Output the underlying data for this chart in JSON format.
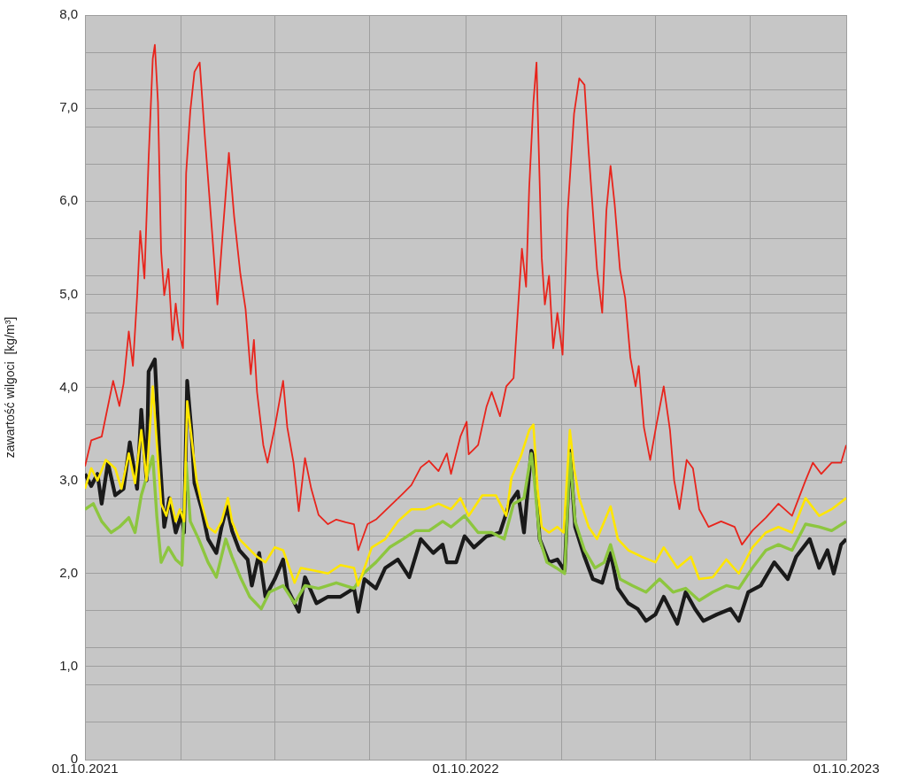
{
  "chart_data": {
    "type": "line",
    "ylabel": "zawartość wilgoci  [kg/m³]",
    "xlim": [
      "2021-10-01",
      "2023-10-01"
    ],
    "xticks": [
      {
        "value": "2021-10-01",
        "label": "01.10.2021"
      },
      {
        "value": "2022-01-01",
        "label": null
      },
      {
        "value": "2022-04-01",
        "label": null
      },
      {
        "value": "2022-07-01",
        "label": null
      },
      {
        "value": "2022-10-01",
        "label": "01.10.2022"
      },
      {
        "value": "2023-01-01",
        "label": null
      },
      {
        "value": "2023-04-01",
        "label": null
      },
      {
        "value": "2023-07-01",
        "label": null
      },
      {
        "value": "2023-10-01",
        "label": "01.10.2023"
      }
    ],
    "ylim": [
      0,
      8
    ],
    "yticks": [
      0,
      {
        "value": 0.4,
        "label": null
      },
      {
        "value": 0.8,
        "label": null
      },
      {
        "value": 1,
        "label": "1,0"
      },
      {
        "value": 1.2,
        "label": null
      },
      {
        "value": 1.6,
        "label": null
      },
      {
        "value": 2,
        "label": "2,0"
      },
      {
        "value": 2.4,
        "label": null
      },
      {
        "value": 2.8,
        "label": null
      },
      {
        "value": 3,
        "label": "3,0"
      },
      {
        "value": 3.2,
        "label": null
      },
      {
        "value": 3.6,
        "label": null
      },
      {
        "value": 4,
        "label": "4,0"
      },
      {
        "value": 4.4,
        "label": null
      },
      {
        "value": 4.8,
        "label": null
      },
      {
        "value": 5,
        "label": "5,0"
      },
      {
        "value": 5.2,
        "label": null
      },
      {
        "value": 5.6,
        "label": null
      },
      {
        "value": 6,
        "label": "6,0"
      },
      {
        "value": 6.4,
        "label": null
      },
      {
        "value": 6.8,
        "label": null
      },
      {
        "value": 7,
        "label": "7,0"
      },
      {
        "value": 7.2,
        "label": null
      },
      {
        "value": 7.6,
        "label": null
      },
      {
        "value": 8,
        "label": "8,0"
      }
    ],
    "grid": true,
    "legend": false,
    "marker": "none",
    "series": [
      {
        "color": "#e8241c",
        "x": [
          "2021-10-01",
          "2021-10-07",
          "2021-10-17",
          "2021-10-28",
          "2021-11-03",
          "2021-11-07",
          "2021-11-12",
          "2021-11-16",
          "2021-11-20",
          "2021-11-23",
          "2021-11-27",
          "2021-12-01",
          "2021-12-05",
          "2021-12-07",
          "2021-12-10",
          "2021-12-13",
          "2021-12-16",
          "2021-12-20",
          "2021-12-24",
          "2021-12-27",
          "2021-12-30",
          "2022-01-03",
          "2022-01-06",
          "2022-01-10",
          "2022-01-14",
          "2022-01-19",
          "2022-01-24",
          "2022-01-31",
          "2022-02-05",
          "2022-02-10",
          "2022-02-16",
          "2022-02-21",
          "2022-02-27",
          "2022-03-04",
          "2022-03-09",
          "2022-03-12",
          "2022-03-15",
          "2022-03-21",
          "2022-03-25",
          "2022-04-01",
          "2022-04-09",
          "2022-04-13",
          "2022-04-19",
          "2022-04-24",
          "2022-04-30",
          "2022-05-06",
          "2022-05-13",
          "2022-05-22",
          "2022-05-30",
          "2022-06-08",
          "2022-06-16",
          "2022-06-20",
          "2022-06-29",
          "2022-07-07",
          "2022-07-20",
          "2022-08-02",
          "2022-08-10",
          "2022-08-19",
          "2022-08-27",
          "2022-09-05",
          "2022-09-13",
          "2022-09-17",
          "2022-09-26",
          "2022-10-02",
          "2022-10-04",
          "2022-10-13",
          "2022-10-21",
          "2022-10-26",
          "2022-11-03",
          "2022-11-09",
          "2022-11-16",
          "2022-11-20",
          "2022-11-24",
          "2022-11-28",
          "2022-12-01",
          "2022-12-05",
          "2022-12-08",
          "2022-12-10",
          "2022-12-13",
          "2022-12-16",
          "2022-12-20",
          "2022-12-24",
          "2022-12-28",
          "2023-01-02",
          "2023-01-07",
          "2023-01-13",
          "2023-01-18",
          "2023-01-23",
          "2023-01-27",
          "2023-01-31",
          "2023-02-04",
          "2023-02-09",
          "2023-02-13",
          "2023-02-17",
          "2023-02-21",
          "2023-02-26",
          "2023-03-03",
          "2023-03-08",
          "2023-03-13",
          "2023-03-16",
          "2023-03-21",
          "2023-03-27",
          "2023-04-02",
          "2023-04-09",
          "2023-04-15",
          "2023-04-19",
          "2023-04-24",
          "2023-05-01",
          "2023-05-07",
          "2023-05-13",
          "2023-05-22",
          "2023-06-03",
          "2023-06-16",
          "2023-06-23",
          "2023-07-03",
          "2023-07-16",
          "2023-07-28",
          "2023-08-10",
          "2023-08-23",
          "2023-08-30",
          "2023-09-07",
          "2023-09-17",
          "2023-09-26",
          "2023-10-01"
        ],
        "values": [
          3.15,
          3.43,
          3.47,
          4.07,
          3.8,
          4.04,
          4.6,
          4.23,
          4.98,
          5.68,
          5.17,
          6.45,
          7.53,
          7.68,
          7.06,
          5.46,
          4.99,
          5.27,
          4.51,
          4.9,
          4.6,
          4.42,
          6.3,
          6.97,
          7.39,
          7.49,
          6.69,
          5.65,
          4.89,
          5.65,
          6.52,
          5.84,
          5.22,
          4.84,
          4.14,
          4.51,
          3.95,
          3.38,
          3.19,
          3.57,
          4.07,
          3.57,
          3.19,
          2.67,
          3.24,
          2.91,
          2.63,
          2.53,
          2.58,
          2.55,
          2.53,
          2.25,
          2.53,
          2.58,
          2.72,
          2.86,
          2.95,
          3.14,
          3.21,
          3.1,
          3.29,
          3.07,
          3.47,
          3.63,
          3.28,
          3.38,
          3.79,
          3.95,
          3.69,
          4.01,
          4.1,
          4.8,
          5.49,
          5.08,
          6.15,
          7.06,
          7.49,
          6.62,
          5.39,
          4.89,
          5.2,
          4.42,
          4.8,
          4.35,
          5.9,
          6.94,
          7.32,
          7.25,
          6.53,
          5.9,
          5.27,
          4.8,
          5.9,
          6.38,
          5.96,
          5.27,
          4.96,
          4.32,
          4.01,
          4.23,
          3.57,
          3.22,
          3.6,
          4.01,
          3.54,
          3.0,
          2.69,
          3.22,
          3.13,
          2.69,
          2.5,
          2.56,
          2.5,
          2.31,
          2.46,
          2.6,
          2.75,
          2.62,
          3.0,
          3.19,
          3.07,
          3.19,
          3.19,
          3.38
        ]
      },
      {
        "color": "#ffe600",
        "x": [
          "2021-10-01",
          "2021-10-07",
          "2021-10-13",
          "2021-10-21",
          "2021-10-30",
          "2021-11-05",
          "2021-11-12",
          "2021-11-18",
          "2021-11-24",
          "2021-11-29",
          "2021-12-03",
          "2021-12-05",
          "2021-12-09",
          "2021-12-13",
          "2021-12-18",
          "2021-12-22",
          "2021-12-27",
          "2021-12-31",
          "2022-01-04",
          "2022-01-07",
          "2022-01-12",
          "2022-01-16",
          "2022-01-21",
          "2022-01-27",
          "2022-02-03",
          "2022-02-09",
          "2022-02-15",
          "2022-02-19",
          "2022-02-26",
          "2022-03-06",
          "2022-03-15",
          "2022-03-23",
          "2022-04-01",
          "2022-04-09",
          "2022-04-20",
          "2022-04-26",
          "2022-05-09",
          "2022-05-22",
          "2022-06-03",
          "2022-06-16",
          "2022-06-20",
          "2022-07-03",
          "2022-07-16",
          "2022-07-28",
          "2022-08-10",
          "2022-08-23",
          "2022-09-05",
          "2022-09-17",
          "2022-09-26",
          "2022-10-04",
          "2022-10-17",
          "2022-10-30",
          "2022-11-09",
          "2022-11-14",
          "2022-11-23",
          "2022-12-01",
          "2022-12-05",
          "2022-12-09",
          "2022-12-13",
          "2022-12-20",
          "2022-12-28",
          "2023-01-03",
          "2023-01-09",
          "2023-01-13",
          "2023-01-18",
          "2023-01-27",
          "2023-02-04",
          "2023-02-11",
          "2023-02-17",
          "2023-02-24",
          "2023-03-06",
          "2023-03-19",
          "2023-04-01",
          "2023-04-09",
          "2023-04-22",
          "2023-05-05",
          "2023-05-13",
          "2023-05-26",
          "2023-06-08",
          "2023-06-20",
          "2023-07-03",
          "2023-07-16",
          "2023-07-28",
          "2023-08-10",
          "2023-08-23",
          "2023-09-05",
          "2023-09-17",
          "2023-10-01"
        ],
        "values": [
          2.91,
          3.13,
          3.0,
          3.22,
          3.13,
          2.91,
          3.29,
          2.97,
          3.54,
          3.0,
          3.69,
          4.01,
          3.38,
          2.75,
          2.62,
          2.81,
          2.56,
          2.69,
          2.56,
          3.85,
          3.38,
          3.0,
          2.75,
          2.5,
          2.44,
          2.56,
          2.81,
          2.56,
          2.37,
          2.28,
          2.18,
          2.12,
          2.28,
          2.25,
          1.9,
          2.06,
          2.03,
          2.0,
          2.09,
          2.06,
          1.87,
          2.28,
          2.37,
          2.56,
          2.69,
          2.69,
          2.75,
          2.69,
          2.81,
          2.62,
          2.84,
          2.84,
          2.62,
          3.03,
          3.26,
          3.54,
          3.6,
          2.91,
          2.5,
          2.44,
          2.5,
          2.44,
          3.54,
          3.13,
          2.81,
          2.5,
          2.37,
          2.56,
          2.72,
          2.37,
          2.25,
          2.18,
          2.12,
          2.28,
          2.06,
          2.18,
          1.94,
          1.96,
          2.15,
          2.0,
          2.28,
          2.44,
          2.5,
          2.44,
          2.81,
          2.62,
          2.69,
          2.81
        ]
      },
      {
        "color": "#8dc63f",
        "x": [
          "2021-10-01",
          "2021-10-09",
          "2021-10-17",
          "2021-10-26",
          "2021-11-03",
          "2021-11-12",
          "2021-11-18",
          "2021-11-24",
          "2021-11-30",
          "2021-12-05",
          "2021-12-09",
          "2021-12-13",
          "2021-12-20",
          "2021-12-27",
          "2022-01-02",
          "2022-01-06",
          "2022-01-10",
          "2022-01-18",
          "2022-01-27",
          "2022-02-04",
          "2022-02-13",
          "2022-02-19",
          "2022-02-27",
          "2022-03-08",
          "2022-03-19",
          "2022-03-27",
          "2022-04-09",
          "2022-04-20",
          "2022-04-30",
          "2022-05-13",
          "2022-05-30",
          "2022-06-16",
          "2022-06-25",
          "2022-07-07",
          "2022-07-20",
          "2022-08-02",
          "2022-08-14",
          "2022-08-27",
          "2022-09-09",
          "2022-09-17",
          "2022-09-30",
          "2022-10-13",
          "2022-10-26",
          "2022-11-07",
          "2022-11-16",
          "2022-11-26",
          "2022-12-03",
          "2022-12-06",
          "2022-12-11",
          "2022-12-18",
          "2022-12-27",
          "2023-01-04",
          "2023-01-09",
          "2023-01-14",
          "2023-01-23",
          "2023-02-02",
          "2023-02-11",
          "2023-02-17",
          "2023-02-26",
          "2023-03-10",
          "2023-03-23",
          "2023-04-05",
          "2023-04-18",
          "2023-04-30",
          "2023-05-13",
          "2023-05-26",
          "2023-06-08",
          "2023-06-20",
          "2023-07-03",
          "2023-07-16",
          "2023-07-28",
          "2023-08-10",
          "2023-08-23",
          "2023-09-05",
          "2023-09-17",
          "2023-10-01"
        ],
        "values": [
          2.69,
          2.75,
          2.56,
          2.44,
          2.5,
          2.6,
          2.44,
          2.84,
          3.07,
          3.26,
          2.6,
          2.12,
          2.28,
          2.15,
          2.09,
          3.19,
          2.56,
          2.37,
          2.12,
          1.96,
          2.37,
          2.18,
          1.96,
          1.75,
          1.62,
          1.8,
          1.87,
          1.68,
          1.87,
          1.84,
          1.9,
          1.84,
          2.0,
          2.12,
          2.28,
          2.37,
          2.46,
          2.46,
          2.56,
          2.5,
          2.62,
          2.44,
          2.44,
          2.37,
          2.75,
          2.81,
          3.29,
          3.0,
          2.37,
          2.12,
          2.06,
          2.0,
          3.29,
          2.56,
          2.25,
          2.06,
          2.12,
          2.31,
          1.94,
          1.87,
          1.8,
          1.94,
          1.8,
          1.84,
          1.71,
          1.8,
          1.87,
          1.84,
          2.06,
          2.25,
          2.31,
          2.25,
          2.53,
          2.5,
          2.46,
          2.56
        ]
      },
      {
        "color": "#1a1a1a",
        "x": [
          "2021-10-01",
          "2021-10-07",
          "2021-10-13",
          "2021-10-17",
          "2021-10-23",
          "2021-10-30",
          "2021-11-07",
          "2021-11-13",
          "2021-11-20",
          "2021-11-24",
          "2021-11-29",
          "2021-12-01",
          "2021-12-07",
          "2021-12-11",
          "2021-12-16",
          "2021-12-21",
          "2021-12-27",
          "2022-01-02",
          "2022-01-04",
          "2022-01-07",
          "2022-01-11",
          "2022-01-14",
          "2022-01-21",
          "2022-01-27",
          "2022-02-04",
          "2022-02-09",
          "2022-02-14",
          "2022-02-19",
          "2022-02-26",
          "2022-03-06",
          "2022-03-10",
          "2022-03-17",
          "2022-03-23",
          "2022-04-01",
          "2022-04-09",
          "2022-04-13",
          "2022-04-24",
          "2022-04-30",
          "2022-05-11",
          "2022-05-22",
          "2022-06-03",
          "2022-06-16",
          "2022-06-20",
          "2022-06-26",
          "2022-07-07",
          "2022-07-16",
          "2022-07-28",
          "2022-08-08",
          "2022-08-19",
          "2022-08-31",
          "2022-09-09",
          "2022-09-13",
          "2022-09-22",
          "2022-09-30",
          "2022-10-09",
          "2022-10-21",
          "2022-11-03",
          "2022-11-12",
          "2022-11-20",
          "2022-11-26",
          "2022-12-03",
          "2022-12-06",
          "2022-12-11",
          "2022-12-20",
          "2022-12-28",
          "2023-01-04",
          "2023-01-09",
          "2023-01-14",
          "2023-01-23",
          "2023-01-31",
          "2023-02-09",
          "2023-02-17",
          "2023-02-24",
          "2023-03-06",
          "2023-03-15",
          "2023-03-23",
          "2023-04-01",
          "2023-04-09",
          "2023-04-22",
          "2023-04-30",
          "2023-05-09",
          "2023-05-17",
          "2023-05-30",
          "2023-06-12",
          "2023-06-20",
          "2023-06-29",
          "2023-07-11",
          "2023-07-24",
          "2023-08-06",
          "2023-08-14",
          "2023-08-27",
          "2023-09-05",
          "2023-09-13",
          "2023-09-19",
          "2023-09-26",
          "2023-10-01"
        ],
        "values": [
          3.07,
          2.94,
          3.07,
          2.75,
          3.19,
          2.84,
          2.91,
          3.41,
          2.91,
          3.76,
          3.0,
          4.17,
          4.3,
          3.38,
          2.5,
          2.81,
          2.44,
          2.65,
          2.44,
          4.07,
          3.54,
          2.97,
          2.69,
          2.37,
          2.22,
          2.5,
          2.72,
          2.46,
          2.25,
          2.15,
          1.87,
          2.22,
          1.75,
          1.94,
          2.15,
          1.84,
          1.59,
          1.96,
          1.68,
          1.75,
          1.75,
          1.84,
          1.59,
          1.94,
          1.84,
          2.06,
          2.15,
          1.96,
          2.37,
          2.22,
          2.31,
          2.12,
          2.12,
          2.4,
          2.28,
          2.4,
          2.44,
          2.75,
          2.88,
          2.44,
          3.32,
          3.22,
          2.37,
          2.12,
          2.15,
          2.03,
          3.32,
          2.5,
          2.18,
          1.94,
          1.9,
          2.22,
          1.84,
          1.68,
          1.62,
          1.49,
          1.56,
          1.75,
          1.46,
          1.8,
          1.62,
          1.49,
          1.56,
          1.62,
          1.49,
          1.8,
          1.87,
          2.12,
          1.94,
          2.18,
          2.37,
          2.06,
          2.25,
          2.0,
          2.31,
          2.37
        ]
      }
    ]
  }
}
